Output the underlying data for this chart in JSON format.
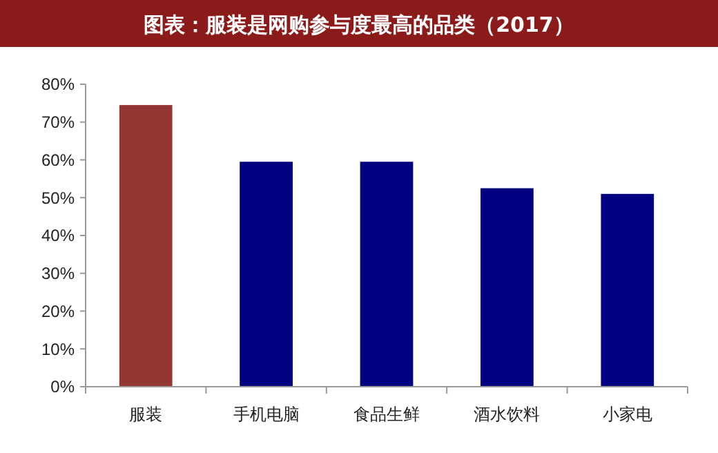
{
  "chart_data": {
    "type": "bar",
    "title": "图表：服装是网购参与度最高的品类（2017）",
    "categories": [
      "服装",
      "手机电脑",
      "食品生鲜",
      "酒水饮料",
      "小家电"
    ],
    "values": [
      74.5,
      59.5,
      59.5,
      52.5,
      51
    ],
    "colors": [
      "#943634",
      "#000080",
      "#000080",
      "#000080",
      "#000080"
    ],
    "ylim": [
      0,
      80
    ],
    "yticks": [
      {
        "value": 0,
        "label": "0%"
      },
      {
        "value": 10,
        "label": "10%"
      },
      {
        "value": 20,
        "label": "20%"
      },
      {
        "value": 30,
        "label": "30%"
      },
      {
        "value": 40,
        "label": "40%"
      },
      {
        "value": 50,
        "label": "50%"
      },
      {
        "value": 60,
        "label": "60%"
      },
      {
        "value": 70,
        "label": "70%"
      },
      {
        "value": 80,
        "label": "80%"
      }
    ],
    "grid": false
  }
}
